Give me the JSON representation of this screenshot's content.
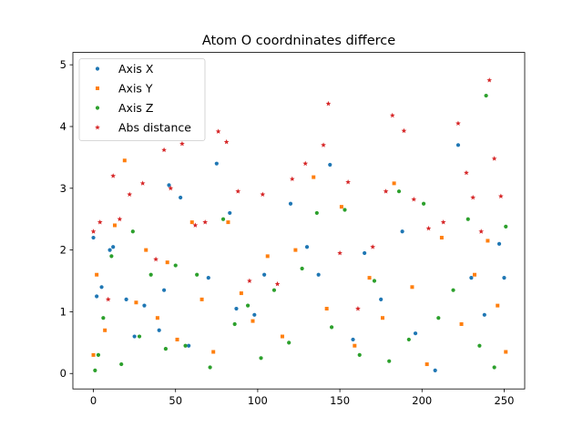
{
  "chart_data": {
    "type": "scatter",
    "title": "Atom O coordninates differce",
    "xlabel": "",
    "ylabel": "",
    "xlim": [
      -12.5,
      262.5
    ],
    "ylim": [
      -0.25,
      5.2
    ],
    "x_ticks": [
      0,
      50,
      100,
      150,
      200,
      250
    ],
    "x_tick_labels": [
      "0",
      "50",
      "100",
      "150",
      "200",
      "250"
    ],
    "y_ticks": [
      0,
      1,
      2,
      3,
      4,
      5
    ],
    "y_tick_labels": [
      "0",
      "1",
      "2",
      "3",
      "4",
      "5"
    ],
    "grid": false,
    "legend_position": "top-left",
    "series": [
      {
        "name": "Axis X",
        "color": "#1f77b4",
        "marker": "circle",
        "x": [
          0,
          2,
          5,
          10,
          12,
          20,
          25,
          31,
          40,
          43,
          46,
          53,
          58,
          70,
          75,
          83,
          87,
          98,
          104,
          120,
          130,
          137,
          144,
          158,
          165,
          175,
          188,
          196,
          208,
          222,
          230,
          238,
          247,
          250
        ],
        "y": [
          2.2,
          1.25,
          1.4,
          2.0,
          2.05,
          1.2,
          0.6,
          1.1,
          0.7,
          1.35,
          3.05,
          2.85,
          0.45,
          1.55,
          3.4,
          2.6,
          1.05,
          0.95,
          1.6,
          2.75,
          2.05,
          1.6,
          3.38,
          0.55,
          1.95,
          1.2,
          2.3,
          0.65,
          0.05,
          3.7,
          1.55,
          0.95,
          2.1,
          1.55
        ]
      },
      {
        "name": "Axis Y",
        "color": "#ff7f0e",
        "marker": "square",
        "x": [
          0,
          2,
          7,
          13,
          19,
          26,
          32,
          39,
          45,
          51,
          60,
          66,
          73,
          82,
          90,
          97,
          106,
          115,
          123,
          134,
          142,
          151,
          159,
          168,
          176,
          183,
          194,
          203,
          212,
          224,
          232,
          240,
          246,
          251
        ],
        "y": [
          0.3,
          1.6,
          0.7,
          2.4,
          3.45,
          1.15,
          2.0,
          0.9,
          1.8,
          0.55,
          2.45,
          1.2,
          0.35,
          2.45,
          1.3,
          0.85,
          1.9,
          0.6,
          2.0,
          3.18,
          1.05,
          2.7,
          0.45,
          1.55,
          0.9,
          3.08,
          1.4,
          0.15,
          2.2,
          0.8,
          1.6,
          2.15,
          1.1,
          0.35
        ]
      },
      {
        "name": "Axis Z",
        "color": "#2ca02c",
        "marker": "circle",
        "x": [
          1,
          3,
          6,
          11,
          17,
          24,
          28,
          35,
          44,
          50,
          56,
          63,
          71,
          79,
          86,
          94,
          102,
          110,
          119,
          127,
          136,
          145,
          153,
          162,
          171,
          180,
          186,
          192,
          201,
          210,
          219,
          228,
          235,
          239,
          244,
          251
        ],
        "y": [
          0.05,
          0.3,
          0.9,
          1.9,
          0.15,
          2.3,
          0.6,
          1.6,
          0.4,
          1.75,
          0.45,
          1.6,
          0.1,
          2.5,
          0.8,
          1.1,
          0.25,
          1.35,
          0.5,
          1.7,
          2.6,
          0.75,
          2.65,
          0.3,
          1.5,
          0.2,
          2.95,
          0.55,
          2.75,
          0.9,
          1.35,
          2.5,
          0.45,
          4.5,
          0.1,
          2.38
        ]
      },
      {
        "name": "Abs distance",
        "color": "#d62728",
        "marker": "star",
        "x": [
          0,
          4,
          9,
          12,
          16,
          22,
          30,
          38,
          43,
          47,
          54,
          62,
          68,
          76,
          81,
          88,
          95,
          103,
          112,
          121,
          129,
          140,
          143,
          150,
          155,
          161,
          170,
          178,
          182,
          189,
          195,
          204,
          213,
          222,
          227,
          231,
          236,
          241,
          244,
          248
        ],
        "y": [
          2.3,
          2.45,
          1.2,
          3.2,
          2.5,
          2.9,
          3.08,
          1.85,
          3.62,
          3.0,
          3.72,
          2.4,
          2.45,
          3.92,
          3.75,
          2.95,
          1.5,
          2.9,
          1.45,
          3.15,
          3.4,
          3.7,
          4.37,
          1.95,
          3.1,
          1.05,
          2.05,
          2.95,
          4.18,
          3.93,
          2.82,
          2.35,
          2.45,
          4.05,
          3.25,
          2.85,
          2.3,
          4.75,
          3.48,
          2.87
        ]
      }
    ]
  }
}
